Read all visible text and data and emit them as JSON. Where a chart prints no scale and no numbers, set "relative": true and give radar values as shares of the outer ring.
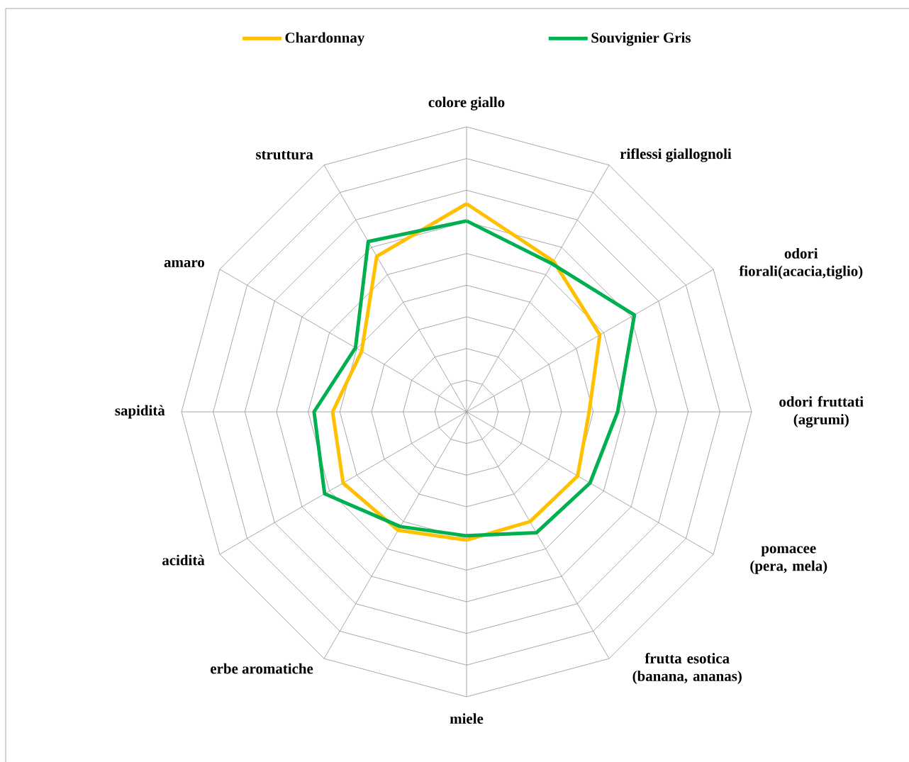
{
  "chart_data": {
    "type": "radar",
    "relative": true,
    "grid": true,
    "legend": "top",
    "categories": [
      "colore giallo",
      "riflessi giallognoli",
      "odori fiorali(acacia,tiglio)",
      "odori fruttati (agrumi)",
      "pomacee (pera, mela)",
      "frutta esotica (banana, ananas)",
      "miele",
      "erbe aromatiche",
      "acidità",
      "sapidità",
      "amaro",
      "struttura"
    ],
    "series": [
      {
        "name": "Chardonnay",
        "color": "#ffc000",
        "values": [
          0.73,
          0.61,
          0.54,
          0.43,
          0.45,
          0.445,
          0.45,
          0.48,
          0.5,
          0.47,
          0.425,
          0.63
        ]
      },
      {
        "name": "Souvignier Gris",
        "color": "#00b050",
        "values": [
          0.67,
          0.6,
          0.68,
          0.53,
          0.5,
          0.49,
          0.435,
          0.465,
          0.575,
          0.535,
          0.45,
          0.69
        ]
      }
    ]
  }
}
